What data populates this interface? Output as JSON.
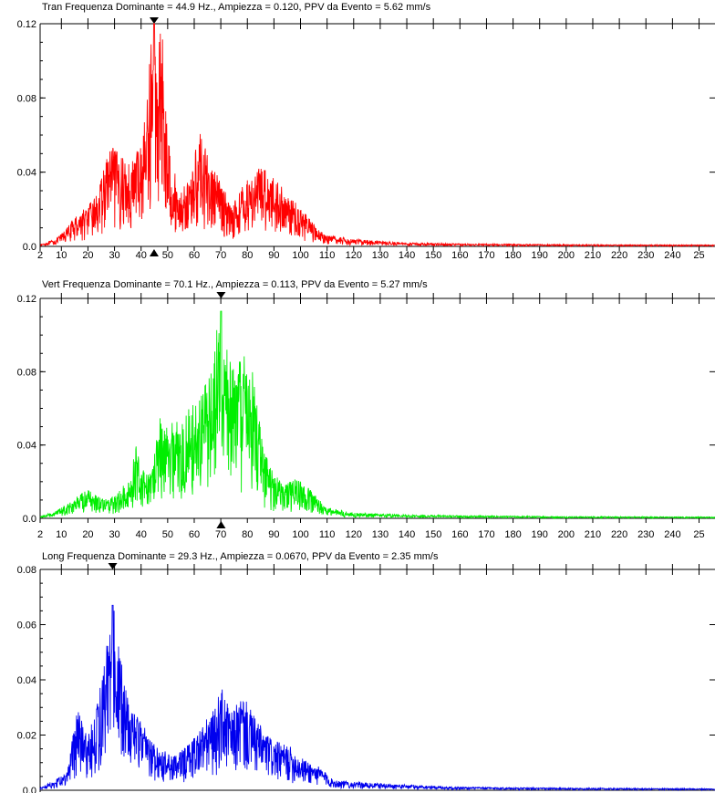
{
  "chart_data": [
    {
      "type": "line",
      "title": "Tran Frequenza Dominante = 44.9 Hz., Ampiezza = 0.120, PPV da Evento = 5.62 mm/s",
      "series": [
        {
          "name": "Tran",
          "color": "#ff0000"
        }
      ],
      "xlim": [
        2,
        256
      ],
      "ylim": [
        0,
        0.12
      ],
      "x_tick_labels": [
        "2",
        "10",
        "20",
        "30",
        "40",
        "50",
        "60",
        "70",
        "80",
        "90",
        "100",
        "110",
        "120",
        "130",
        "140",
        "150",
        "160",
        "170",
        "180",
        "190",
        "200",
        "210",
        "220",
        "230",
        "240",
        "25"
      ],
      "y_tick_labels": [
        "0.0",
        "0.04",
        "0.08",
        "0.12"
      ],
      "dominant_frequency": 44.9,
      "peak_amplitude": 0.12,
      "envelope": [
        [
          2,
          0.001
        ],
        [
          8,
          0.004
        ],
        [
          12,
          0.01
        ],
        [
          16,
          0.018
        ],
        [
          20,
          0.022
        ],
        [
          24,
          0.03
        ],
        [
          28,
          0.055
        ],
        [
          32,
          0.05
        ],
        [
          36,
          0.045
        ],
        [
          40,
          0.058
        ],
        [
          42,
          0.075
        ],
        [
          44,
          0.12
        ],
        [
          46,
          0.11
        ],
        [
          48,
          0.12
        ],
        [
          50,
          0.06
        ],
        [
          54,
          0.03
        ],
        [
          58,
          0.035
        ],
        [
          62,
          0.062
        ],
        [
          66,
          0.045
        ],
        [
          70,
          0.035
        ],
        [
          74,
          0.022
        ],
        [
          78,
          0.032
        ],
        [
          82,
          0.04
        ],
        [
          86,
          0.045
        ],
        [
          90,
          0.038
        ],
        [
          94,
          0.03
        ],
        [
          98,
          0.024
        ],
        [
          102,
          0.018
        ],
        [
          106,
          0.01
        ],
        [
          110,
          0.006
        ],
        [
          120,
          0.004
        ],
        [
          140,
          0.002
        ],
        [
          160,
          0.0015
        ],
        [
          200,
          0.001
        ],
        [
          256,
          0.0008
        ]
      ]
    },
    {
      "type": "line",
      "title": "Vert Frequenza Dominante = 70.1 Hz., Ampiezza = 0.113, PPV da Evento = 5.27 mm/s",
      "series": [
        {
          "name": "Vert",
          "color": "#00ee00"
        }
      ],
      "xlim": [
        2,
        256
      ],
      "ylim": [
        0,
        0.12
      ],
      "x_tick_labels": [
        "2",
        "10",
        "20",
        "30",
        "40",
        "50",
        "60",
        "70",
        "80",
        "90",
        "100",
        "110",
        "120",
        "130",
        "140",
        "150",
        "160",
        "170",
        "180",
        "190",
        "200",
        "210",
        "220",
        "230",
        "240",
        "25"
      ],
      "y_tick_labels": [
        "0.0",
        "0.04",
        "0.08",
        "0.12"
      ],
      "dominant_frequency": 70.1,
      "peak_amplitude": 0.113,
      "envelope": [
        [
          2,
          0.001
        ],
        [
          8,
          0.004
        ],
        [
          12,
          0.008
        ],
        [
          16,
          0.012
        ],
        [
          20,
          0.016
        ],
        [
          24,
          0.012
        ],
        [
          28,
          0.01
        ],
        [
          32,
          0.016
        ],
        [
          36,
          0.022
        ],
        [
          38,
          0.042
        ],
        [
          40,
          0.03
        ],
        [
          44,
          0.025
        ],
        [
          46,
          0.058
        ],
        [
          50,
          0.05
        ],
        [
          54,
          0.055
        ],
        [
          58,
          0.06
        ],
        [
          62,
          0.065
        ],
        [
          66,
          0.08
        ],
        [
          68,
          0.1
        ],
        [
          70,
          0.113
        ],
        [
          72,
          0.095
        ],
        [
          76,
          0.085
        ],
        [
          80,
          0.09
        ],
        [
          82,
          0.08
        ],
        [
          86,
          0.04
        ],
        [
          90,
          0.025
        ],
        [
          94,
          0.018
        ],
        [
          98,
          0.022
        ],
        [
          102,
          0.018
        ],
        [
          106,
          0.012
        ],
        [
          110,
          0.006
        ],
        [
          120,
          0.003
        ],
        [
          140,
          0.002
        ],
        [
          160,
          0.0015
        ],
        [
          200,
          0.001
        ],
        [
          256,
          0.0008
        ]
      ]
    },
    {
      "type": "line",
      "title": "Long Frequenza Dominante = 29.3 Hz., Ampiezza = 0.0670, PPV da Evento = 2.35 mm/s",
      "series": [
        {
          "name": "Long",
          "color": "#0000ee"
        }
      ],
      "xlim": [
        2,
        256
      ],
      "ylim": [
        0,
        0.08
      ],
      "y_tick_labels": [
        "0.0",
        "0.02",
        "0.04",
        "0.06",
        "0.08"
      ],
      "dominant_frequency": 29.3,
      "peak_amplitude": 0.067,
      "envelope": [
        [
          2,
          0.001
        ],
        [
          8,
          0.004
        ],
        [
          12,
          0.006
        ],
        [
          16,
          0.03
        ],
        [
          20,
          0.02
        ],
        [
          24,
          0.035
        ],
        [
          26,
          0.045
        ],
        [
          28,
          0.06
        ],
        [
          30,
          0.067
        ],
        [
          32,
          0.05
        ],
        [
          34,
          0.04
        ],
        [
          36,
          0.035
        ],
        [
          40,
          0.025
        ],
        [
          44,
          0.018
        ],
        [
          48,
          0.015
        ],
        [
          52,
          0.012
        ],
        [
          56,
          0.015
        ],
        [
          60,
          0.02
        ],
        [
          64,
          0.025
        ],
        [
          68,
          0.03
        ],
        [
          70,
          0.038
        ],
        [
          74,
          0.028
        ],
        [
          78,
          0.035
        ],
        [
          82,
          0.028
        ],
        [
          86,
          0.022
        ],
        [
          90,
          0.018
        ],
        [
          96,
          0.016
        ],
        [
          100,
          0.012
        ],
        [
          104,
          0.01
        ],
        [
          108,
          0.008
        ],
        [
          112,
          0.004
        ],
        [
          120,
          0.003
        ],
        [
          140,
          0.002
        ],
        [
          160,
          0.0012
        ],
        [
          200,
          0.0008
        ],
        [
          256,
          0.0006
        ]
      ]
    }
  ]
}
